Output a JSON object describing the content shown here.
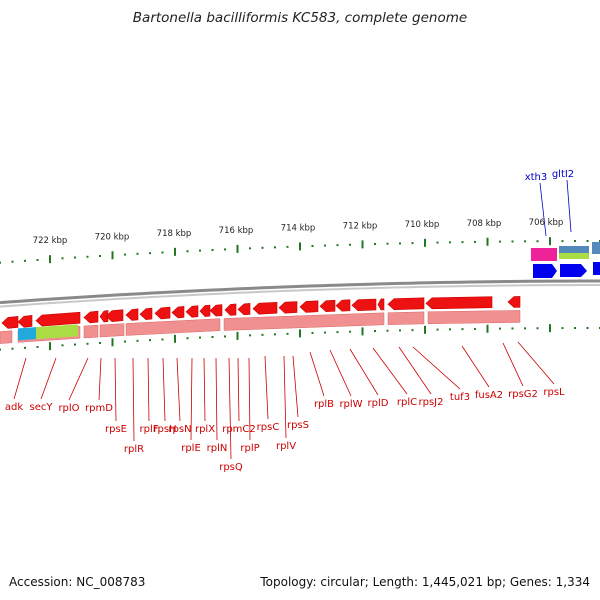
{
  "title": "Bartonella bacilliformis KC583, complete genome",
  "footer": {
    "accession": "Accession: NC_008783",
    "stats": "Topology: circular; Length: 1,445,021 bp; Genes: 1,334"
  },
  "colors": {
    "gene_red": "#ee1111",
    "gene_pink": "#f09090",
    "backbone": "#8a8a8a",
    "tick_green": "#227722",
    "blue_arrow": "#0000ee",
    "magenta": "#ee2299",
    "cyan": "#22aadd",
    "lime": "#aadd44",
    "label_red": "#cc0000",
    "label_blue": "#0000cc"
  },
  "kbp_scale": [
    "722 kbp",
    "720 kbp",
    "718 kbp",
    "716 kbp",
    "714 kbp",
    "712 kbp",
    "710 kbp",
    "708 kbp",
    "706 kbp"
  ],
  "red_genes": [
    "adk",
    "secY",
    "rplO",
    "rpmD",
    "rpsE",
    "rplR",
    "rplF",
    "rpsH",
    "rpsN",
    "rplE",
    "rplX",
    "rplN",
    "rpsQ",
    "rpmC2",
    "rplP",
    "rpsC",
    "rplV",
    "rpsS",
    "rplB",
    "rplW",
    "rplD",
    "rplC",
    "rpsJ2",
    "tuf3",
    "fusA2",
    "rpsG2",
    "rpsL"
  ],
  "blue_genes": [
    "xth3",
    "gltI2"
  ]
}
